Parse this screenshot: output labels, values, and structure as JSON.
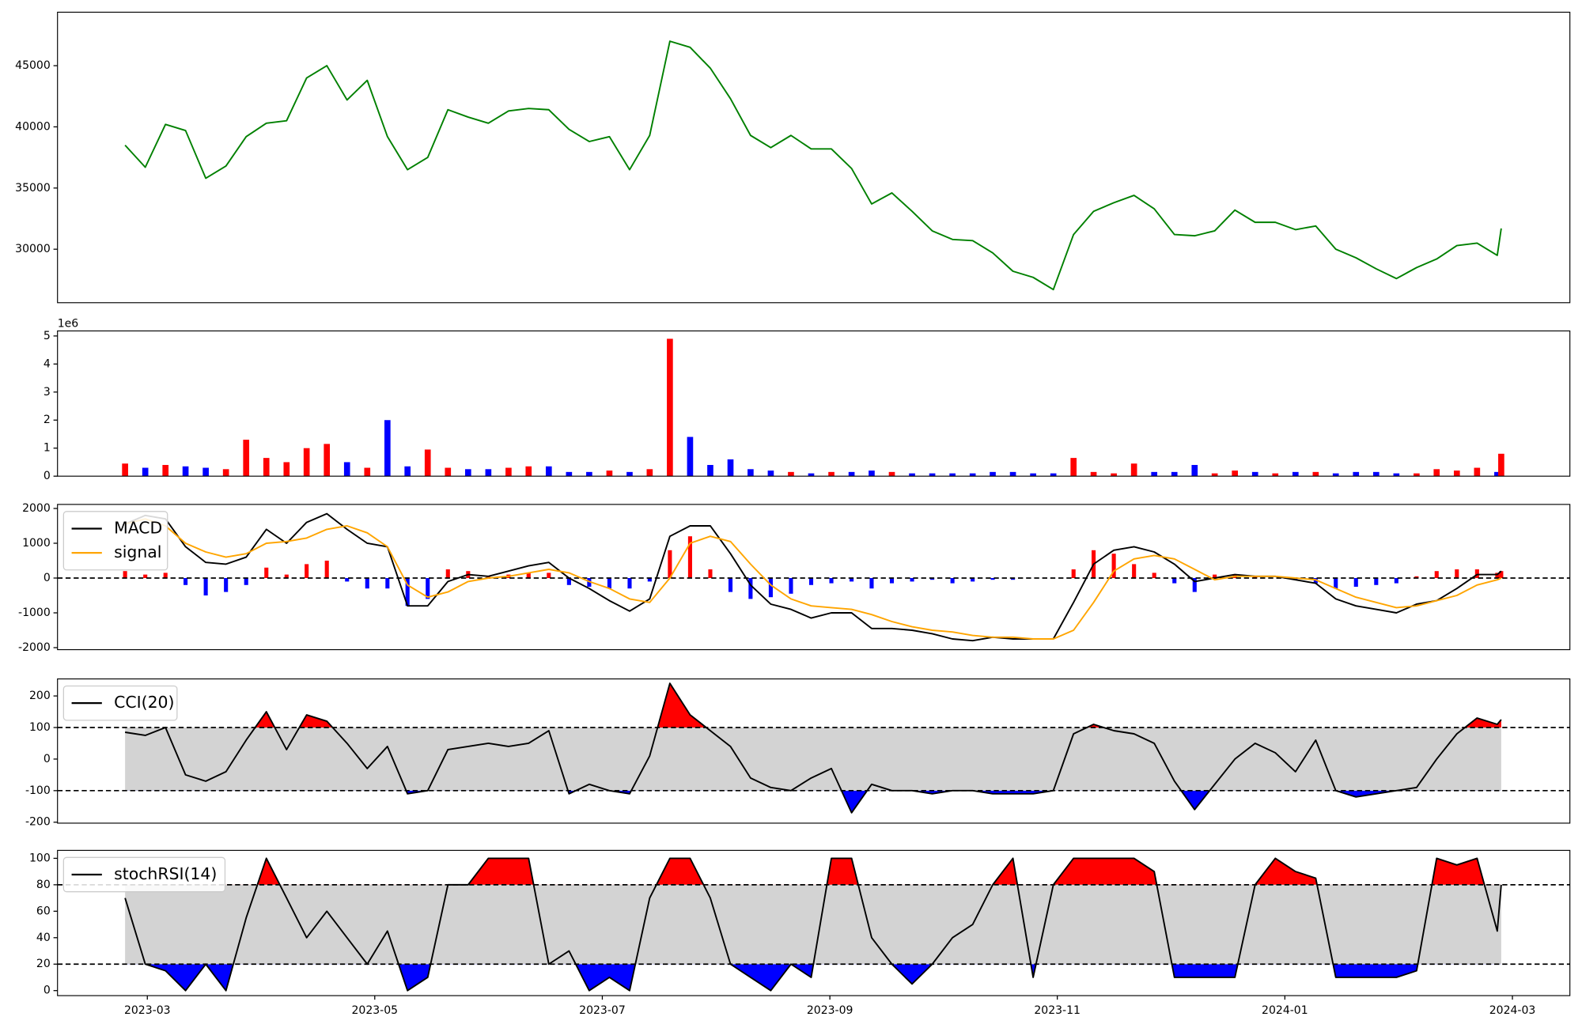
{
  "chart_data": [
    {
      "type": "line",
      "x": [
        2023.1504,
        2023.1652,
        2023.18,
        2023.1947,
        2023.2095,
        2023.2243,
        2023.2391,
        2023.2539,
        2023.2687,
        2023.2834,
        2023.2982,
        2023.313,
        2023.3278,
        2023.3426,
        2023.3573,
        2023.3721,
        2023.3869,
        2023.4017,
        2023.4165,
        2023.4313,
        2023.446,
        2023.4608,
        2023.4756,
        2023.4904,
        2023.5052,
        2023.52,
        2023.5347,
        2023.5495,
        2023.5643,
        2023.5791,
        2023.5939,
        2023.6086,
        2023.6234,
        2023.6382,
        2023.653,
        2023.6678,
        2023.6826,
        2023.6973,
        2023.7121,
        2023.7269,
        2023.7417,
        2023.7565,
        2023.7713,
        2023.786,
        2023.8008,
        2023.8156,
        2023.8304,
        2023.8452,
        2023.8599,
        2023.8747,
        2023.8895,
        2023.9043,
        2023.9191,
        2023.9339,
        2023.9486,
        2023.9634,
        2023.9782,
        2023.993,
        2024.0078,
        2024.0226,
        2024.0373,
        2024.0521,
        2024.0669,
        2024.0817,
        2024.0965,
        2024.1112,
        2024.126,
        2024.1408,
        2024.1556,
        2024.1585
      ],
      "xlim": [
        2023.1009,
        2024.2088
      ],
      "values": [
        38500,
        36700,
        40200,
        39700,
        35800,
        36800,
        39200,
        40300,
        40500,
        44000,
        45000,
        42200,
        43800,
        39200,
        36500,
        37500,
        41400,
        40800,
        40300,
        41300,
        41500,
        41400,
        39800,
        38800,
        39200,
        36500,
        39300,
        47000,
        46500,
        44800,
        42300,
        39300,
        38300,
        39300,
        38200,
        38200,
        36600,
        33700,
        34600,
        33100,
        31500,
        30800,
        30700,
        29700,
        28200,
        27700,
        26700,
        31200,
        33100,
        33800,
        34400,
        33300,
        31200,
        31100,
        31500,
        33200,
        32200,
        32200,
        31600,
        31900,
        30000,
        29300,
        28400,
        27600,
        28500,
        29200,
        30300,
        30500,
        29500,
        31700
      ],
      "color": "green",
      "ylim": [
        25630,
        49370
      ],
      "yticks": [
        30000,
        35000,
        40000,
        45000
      ]
    },
    {
      "type": "bar",
      "values": [
        450000,
        300000,
        400000,
        350000,
        300000,
        250000,
        1300000,
        650000,
        500000,
        1000000,
        1150000,
        500000,
        300000,
        2000000,
        350000,
        950000,
        300000,
        250000,
        250000,
        300000,
        350000,
        350000,
        150000,
        150000,
        200000,
        150000,
        250000,
        4900000,
        1400000,
        400000,
        600000,
        250000,
        200000,
        150000,
        100000,
        150000,
        150000,
        200000,
        150000,
        100000,
        100000,
        100000,
        100000,
        150000,
        150000,
        100000,
        100000,
        650000,
        150000,
        100000,
        450000,
        150000,
        150000,
        400000,
        100000,
        200000,
        150000,
        100000,
        150000,
        150000,
        100000,
        150000,
        150000,
        100000,
        100000,
        250000,
        200000,
        300000,
        150000,
        800000
      ],
      "up_color": "red",
      "down_color": "blue",
      "ylim": [
        0,
        5180000
      ],
      "yticks": [
        0,
        {
          "value": 1000000,
          "label": "1"
        },
        {
          "value": 2000000,
          "label": "2"
        },
        {
          "value": 3000000,
          "label": "3"
        },
        {
          "value": 4000000,
          "label": "4"
        },
        {
          "value": 5000000,
          "label": "5"
        }
      ],
      "offset_label": "1e6"
    },
    {
      "type": "macd",
      "series": [
        {
          "name": "MACD",
          "color": "black",
          "values": [
            1550,
            1800,
            1700,
            900,
            450,
            400,
            600,
            1400,
            1000,
            1600,
            1850,
            1400,
            1000,
            900,
            -800,
            -800,
            -100,
            100,
            50,
            200,
            350,
            450,
            0,
            -300,
            -650,
            -950,
            -600,
            1200,
            1500,
            1500,
            700,
            -200,
            -750,
            -900,
            -1150,
            -1000,
            -1000,
            -1450,
            -1450,
            -1500,
            -1600,
            -1750,
            -1800,
            -1700,
            -1750,
            -1750,
            -1750,
            -700,
            400,
            800,
            900,
            750,
            400,
            -100,
            0,
            100,
            50,
            50,
            -50,
            -150,
            -600,
            -800,
            -900,
            -1000,
            -750,
            -650,
            -300,
            100,
            100,
            200
          ]
        },
        {
          "name": "signal",
          "color": "orange",
          "values": [
            1550,
            1700,
            1500,
            1000,
            750,
            600,
            700,
            1000,
            1050,
            1150,
            1400,
            1500,
            1300,
            900,
            -200,
            -550,
            -400,
            -100,
            0,
            50,
            150,
            250,
            150,
            -100,
            -300,
            -600,
            -700,
            0,
            1000,
            1200,
            1050,
            400,
            -200,
            -600,
            -800,
            -850,
            -900,
            -1050,
            -1250,
            -1400,
            -1500,
            -1550,
            -1650,
            -1700,
            -1700,
            -1750,
            -1750,
            -1500,
            -700,
            200,
            550,
            650,
            550,
            250,
            -50,
            50,
            50,
            50,
            0,
            -50,
            -300,
            -550,
            -700,
            -850,
            -800,
            -650,
            -500,
            -200,
            -50,
            0
          ]
        }
      ],
      "histogram": {
        "up_color": "red",
        "down_color": "blue",
        "values": [
          200,
          100,
          150,
          -200,
          -500,
          -400,
          -200,
          300,
          100,
          400,
          500,
          -100,
          -300,
          -300,
          -800,
          -600,
          250,
          200,
          50,
          100,
          150,
          150,
          -200,
          -250,
          -300,
          -300,
          -100,
          800,
          1200,
          250,
          -400,
          -600,
          -550,
          -450,
          -200,
          -150,
          -100,
          -300,
          -150,
          -100,
          -50,
          -150,
          -100,
          -50,
          -50,
          0,
          0,
          250,
          800,
          700,
          400,
          150,
          -150,
          -400,
          100,
          100,
          50,
          0,
          -50,
          -150,
          -300,
          -250,
          -200,
          -150,
          50,
          200,
          250,
          250,
          150,
          200
        ]
      },
      "hlines": [
        0
      ],
      "ylim": [
        -2058,
        2116
      ],
      "yticks": [
        -2000,
        -1000,
        0,
        1000,
        2000
      ],
      "legend": "upper left"
    },
    {
      "type": "oscillator",
      "series": [
        {
          "name": "CCI(20)",
          "color": "black",
          "values": [
            85,
            75,
            100,
            -50,
            -70,
            -40,
            60,
            150,
            30,
            140,
            120,
            50,
            -30,
            40,
            -110,
            -100,
            30,
            40,
            50,
            40,
            50,
            90,
            -110,
            -80,
            -100,
            -110,
            10,
            240,
            140,
            90,
            40,
            -60,
            -90,
            -100,
            -60,
            -30,
            -170,
            -80,
            -100,
            -100,
            -110,
            -100,
            -100,
            -110,
            -110,
            -110,
            -100,
            80,
            110,
            90,
            80,
            50,
            -70,
            -160,
            -80,
            0,
            50,
            20,
            -40,
            60,
            -100,
            -120,
            -110,
            -100,
            -90,
            0,
            80,
            130,
            110,
            125
          ]
        }
      ],
      "thresholds": [
        -100,
        100
      ],
      "band_color": "lightgray",
      "above_color": "red",
      "below_color": "blue",
      "ylim": [
        -203,
        254
      ],
      "yticks": [
        -200,
        -100,
        0,
        100,
        200
      ],
      "legend": "upper left"
    },
    {
      "type": "oscillator",
      "series": [
        {
          "name": "stochRSI(14)",
          "color": "black",
          "values": [
            70,
            20,
            15,
            0,
            20,
            0,
            55,
            100,
            70,
            40,
            60,
            40,
            20,
            45,
            0,
            10,
            80,
            80,
            100,
            100,
            100,
            20,
            30,
            0,
            10,
            0,
            70,
            100,
            100,
            70,
            20,
            10,
            0,
            20,
            10,
            100,
            100,
            40,
            20,
            5,
            20,
            40,
            50,
            80,
            100,
            10,
            80,
            100,
            100,
            100,
            100,
            90,
            10,
            10,
            10,
            10,
            80,
            100,
            90,
            85,
            10,
            10,
            10,
            10,
            15,
            100,
            95,
            100,
            45,
            80
          ]
        }
      ],
      "thresholds": [
        20,
        80
      ],
      "band_color": "lightgray",
      "above_color": "red",
      "below_color": "blue",
      "ylim": [
        -3.8,
        106
      ],
      "yticks": [
        0,
        20,
        40,
        60,
        80,
        100
      ],
      "xticks": [
        {
          "value": 2023.1667,
          "label": "2023-03"
        },
        {
          "value": 2023.3333,
          "label": "2023-05"
        },
        {
          "value": 2023.5,
          "label": "2023-07"
        },
        {
          "value": 2023.6667,
          "label": "2023-09"
        },
        {
          "value": 2023.8333,
          "label": "2023-11"
        },
        {
          "value": 2024.0,
          "label": "2024-01"
        },
        {
          "value": 2024.1667,
          "label": "2024-03"
        }
      ],
      "legend": "upper left"
    }
  ]
}
